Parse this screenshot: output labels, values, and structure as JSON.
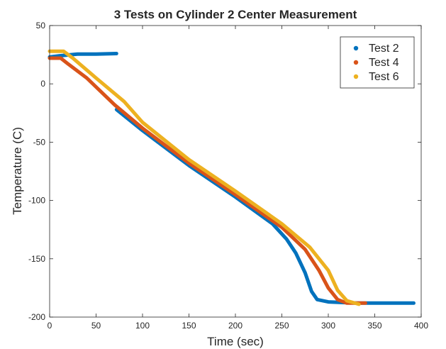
{
  "chart_data": {
    "type": "scatter",
    "title": "3 Tests on Cylinder 2 Center Measurement",
    "xlabel": "Time (sec)",
    "ylabel": "Temperature (C)",
    "xlim": [
      0,
      400
    ],
    "ylim": [
      -200,
      50
    ],
    "xticks": [
      0,
      50,
      100,
      150,
      200,
      250,
      300,
      350,
      400
    ],
    "yticks": [
      -200,
      -150,
      -100,
      -50,
      0,
      50
    ],
    "grid": false,
    "legend_position": "top-right",
    "series": [
      {
        "name": "Test 2",
        "color": "#0072bd",
        "segments": [
          [
            [
              0,
              23
            ],
            [
              10,
              24
            ],
            [
              30,
              25.5
            ],
            [
              50,
              25.5
            ],
            [
              72,
              26
            ]
          ],
          [
            [
              72,
              -22
            ],
            [
              100,
              -40
            ],
            [
              150,
              -70
            ],
            [
              200,
              -97
            ],
            [
              240,
              -120
            ],
            [
              255,
              -133
            ],
            [
              265,
              -145
            ],
            [
              275,
              -162
            ],
            [
              282,
              -178
            ],
            [
              288,
              -185
            ],
            [
              300,
              -187
            ],
            [
              330,
              -188
            ],
            [
              360,
              -188
            ],
            [
              392,
              -188
            ]
          ]
        ]
      },
      {
        "name": "Test 4",
        "color": "#d95319",
        "segments": [
          [
            [
              0,
              22
            ],
            [
              12,
              22
            ],
            [
              20,
              17
            ],
            [
              40,
              5
            ],
            [
              70,
              -18
            ],
            [
              100,
              -38
            ],
            [
              150,
              -68
            ],
            [
              200,
              -95
            ],
            [
              250,
              -123
            ],
            [
              275,
              -142
            ],
            [
              290,
              -160
            ],
            [
              300,
              -175
            ],
            [
              310,
              -185
            ],
            [
              320,
              -188
            ],
            [
              340,
              -188
            ]
          ]
        ]
      },
      {
        "name": "Test 6",
        "color": "#edb120",
        "segments": [
          [
            [
              0,
              28
            ],
            [
              15,
              28
            ],
            [
              25,
              22
            ],
            [
              50,
              5
            ],
            [
              80,
              -15
            ],
            [
              100,
              -33
            ],
            [
              150,
              -65
            ],
            [
              200,
              -92
            ],
            [
              250,
              -120
            ],
            [
              280,
              -140
            ],
            [
              300,
              -160
            ],
            [
              310,
              -177
            ],
            [
              320,
              -186
            ],
            [
              333,
              -189
            ]
          ]
        ]
      }
    ]
  }
}
